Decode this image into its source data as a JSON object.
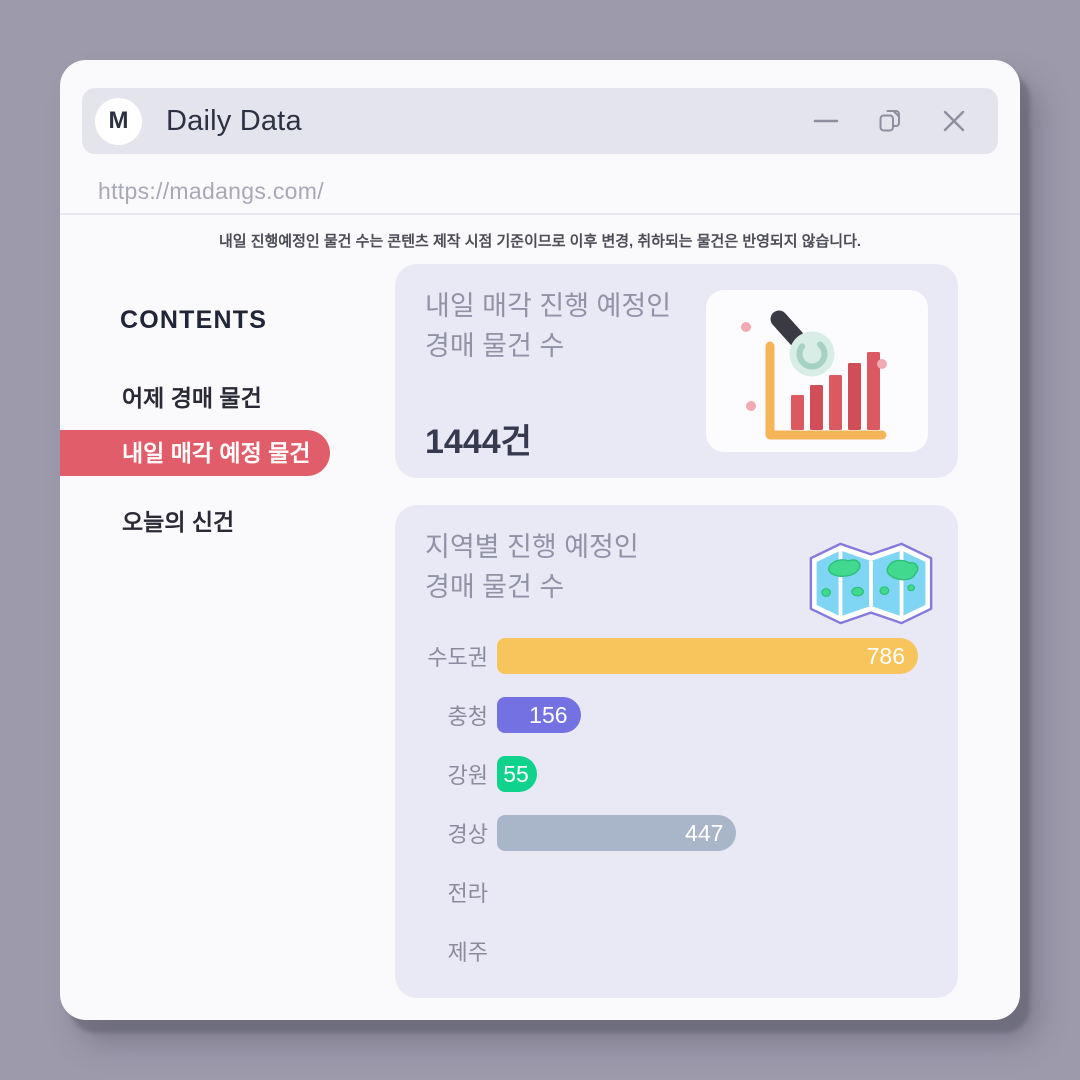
{
  "window": {
    "logo_letter": "M",
    "title": "Daily Data",
    "url": "https://madangs.com/"
  },
  "icons": {
    "minimize": "—",
    "copy": "⧉",
    "close": "×",
    "summary_card_illustration": "bar-chart-with-magnifier",
    "regional_card_illustration": "folded-map"
  },
  "disclaimer": "내일 진행예정인 물건 수는 콘텐츠 제작 시점 기준이므로 이후 변경, 취하되는 물건은 반영되지 않습니다.",
  "sidebar": {
    "heading": "CONTENTS",
    "items": [
      {
        "label": "어제 경매 물건",
        "active": false
      },
      {
        "label": "내일 매각 예정 물건",
        "active": true
      },
      {
        "label": "오늘의 신건",
        "active": false
      }
    ]
  },
  "cards": {
    "summary": {
      "title_line1": "내일 매각 진행 예정인",
      "title_line2": "경매 물건 수",
      "value": "1444건"
    },
    "regional": {
      "title_line1": "지역별 진행 예정인",
      "title_line2": "경매 물건 수"
    }
  },
  "chart_data": {
    "type": "bar",
    "orientation": "horizontal",
    "title": "지역별 진행 예정인 경매 물건 수",
    "categories": [
      "수도권",
      "충청",
      "강원",
      "경상",
      "전라",
      "제주"
    ],
    "values": [
      786,
      156,
      55,
      447,
      null,
      null
    ],
    "bar_colors": [
      "#f8c55c",
      "#7472e2",
      "#0fd28c",
      "#a9b6c9",
      null,
      null
    ],
    "value_label_color": "#ffffff",
    "xlim": [
      0,
      786
    ],
    "legend": false,
    "gridlines": false
  },
  "colors": {
    "page_bg": "#9c9aab",
    "window_bg": "#fafafd",
    "titlebar_bg": "#e4e4ed",
    "card_bg": "#e9e9f6",
    "active_pill": "#e25d6a",
    "heading_text": "#202538",
    "muted_title": "#9292a6",
    "value_text": "#363a4f"
  }
}
